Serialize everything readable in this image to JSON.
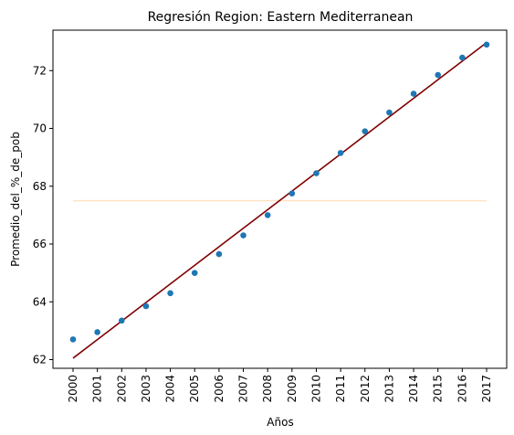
{
  "chart_data": {
    "type": "scatter",
    "title": "Regresión Region: Eastern Mediterranean",
    "xlabel": "Años",
    "ylabel": "Promedio_del_%_de_pob",
    "categories": [
      "2000",
      "2001",
      "2002",
      "2003",
      "2004",
      "2005",
      "2006",
      "2007",
      "2008",
      "2009",
      "2010",
      "2011",
      "2012",
      "2013",
      "2014",
      "2015",
      "2016",
      "2017"
    ],
    "yticks": [
      62,
      64,
      66,
      68,
      70,
      72
    ],
    "ylim": [
      61.7,
      73.4
    ],
    "series": [
      {
        "kind": "points",
        "color": "#1f77b4",
        "values": [
          62.7,
          62.95,
          63.35,
          63.85,
          64.3,
          65.0,
          65.65,
          66.3,
          67.0,
          67.75,
          68.45,
          69.15,
          69.9,
          70.55,
          71.2,
          71.85,
          72.45,
          72.9
        ]
      },
      {
        "kind": "regression-line",
        "color": "#800000",
        "x": [
          "2000",
          "2017"
        ],
        "values": [
          62.05,
          72.97
        ]
      },
      {
        "kind": "mean-line",
        "color": "#ffe4c4",
        "x": [
          "2000",
          "2017"
        ],
        "values": [
          67.5,
          67.5
        ]
      }
    ],
    "grid": false,
    "legend": "none"
  }
}
